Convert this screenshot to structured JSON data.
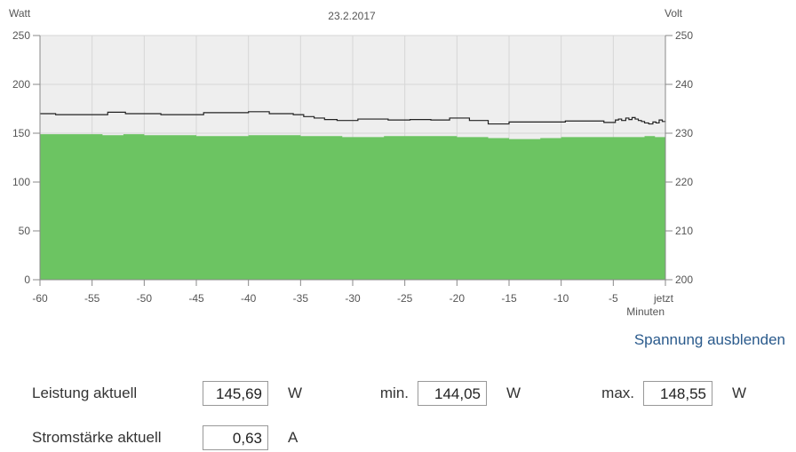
{
  "chart_data": {
    "type": "area",
    "title": "23.2.2017",
    "left_axis_label": "Watt",
    "right_axis_label": "Volt",
    "xlabel": "Minuten",
    "xlim": [
      -60,
      0
    ],
    "ylim_left": [
      0,
      250
    ],
    "ylim_right": [
      200,
      250
    ],
    "x_ticks": [
      -60,
      -55,
      -50,
      -45,
      -40,
      -35,
      -30,
      -25,
      -20,
      -15,
      -10,
      -5,
      0
    ],
    "x_tick_labels": [
      "-60",
      "-55",
      "-50",
      "-45",
      "-40",
      "-35",
      "-30",
      "-25",
      "-20",
      "-15",
      "-10",
      "-5",
      "jetzt"
    ],
    "y_left_ticks": [
      "0",
      "50",
      "100",
      "150",
      "200",
      "250"
    ],
    "y_right_ticks": [
      "200",
      "210",
      "220",
      "230",
      "240",
      "250"
    ],
    "grid": true,
    "series": [
      {
        "axis": "left",
        "color": "#6cc462",
        "x": [
          -60,
          -54,
          -52,
          -50,
          -45,
          -40,
          -35,
          -31,
          -27,
          -20,
          -17,
          -15,
          -12,
          -10,
          -5,
          -2,
          -1,
          0
        ],
        "values": [
          149,
          148,
          149,
          148,
          147,
          148,
          147,
          146,
          147,
          146,
          145,
          144,
          145,
          146,
          146,
          147,
          146,
          148
        ]
      },
      {
        "axis": "right",
        "color": "#222222",
        "x": [
          -60,
          -58.5,
          -56,
          -53.5,
          -51.8,
          -48.4,
          -44.3,
          -40,
          -38,
          -35.7,
          -34.7,
          -33.7,
          -32.7,
          -31.5,
          -29.5,
          -26.6,
          -24.5,
          -22.5,
          -20.7,
          -18.8,
          -17,
          -15,
          -13.2,
          -9.6,
          -5.9,
          -4.8,
          -4.5,
          -4.2,
          -3.8,
          -3.5,
          -3.2,
          -2.9,
          -2.6,
          -2.3,
          -2.0,
          -1.6,
          -1.2,
          -0.9,
          -0.6,
          -0.3,
          0
        ],
        "values": [
          234,
          233.8,
          233.8,
          234.3,
          234,
          233.8,
          234.2,
          234.4,
          234,
          233.8,
          233.4,
          233.1,
          232.8,
          232.6,
          232.9,
          232.7,
          232.8,
          232.7,
          233.1,
          232.6,
          231.9,
          232.3,
          232.3,
          232.5,
          232.2,
          232.7,
          232.9,
          232.6,
          233.1,
          232.8,
          233.2,
          232.9,
          232.6,
          232.4,
          232.1,
          231.9,
          232.3,
          232.1,
          232.7,
          232.4,
          232.5
        ]
      }
    ]
  },
  "toggle_link": "Spannung ausblenden",
  "stats": {
    "power_label": "Leistung aktuell",
    "power_value": "145,69",
    "power_unit": "W",
    "min_label": "min.",
    "min_value": "144,05",
    "min_unit": "W",
    "max_label": "max.",
    "max_value": "148,55",
    "max_unit": "W",
    "current_label": "Stromstärke aktuell",
    "current_value": "0,63",
    "current_unit": "A"
  }
}
